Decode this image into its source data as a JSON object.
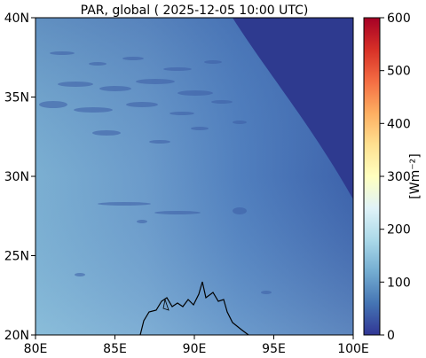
{
  "title": "PAR, global ( 2025-12-05 10:00 UTC)",
  "map": {
    "lat_range": [
      20,
      40
    ],
    "lon_range": [
      80,
      100
    ],
    "lat_ticks": [
      "20N",
      "25N",
      "30N",
      "35N",
      "40N"
    ],
    "lon_ticks": [
      "80E",
      "85E",
      "90E",
      "95E",
      "100E"
    ]
  },
  "colorbar": {
    "label": "[Wm⁻²]",
    "range": [
      0,
      600
    ],
    "ticks": [
      "0",
      "100",
      "200",
      "300",
      "400",
      "500",
      "600"
    ],
    "colormap": "RdYlBu_r",
    "colors": [
      "#313695",
      "#4575b4",
      "#74add1",
      "#abd9e9",
      "#e0f3f8",
      "#ffffbf",
      "#fee090",
      "#fdae61",
      "#f46d43",
      "#d73027",
      "#a50026"
    ]
  }
}
